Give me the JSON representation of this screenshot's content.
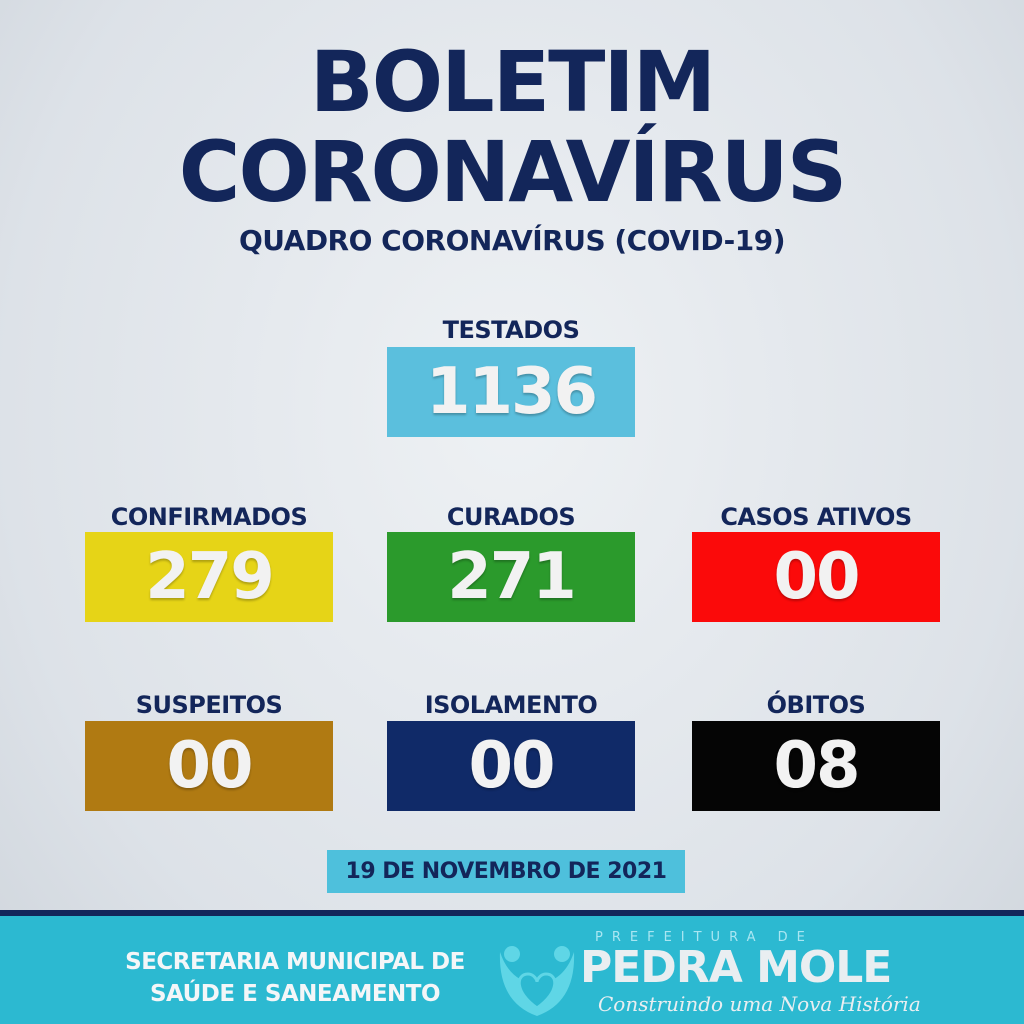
{
  "header": {
    "title_line1": "BOLETIM",
    "title_line2": "CORONAVÍRUS",
    "subtitle": "QUADRO CORONAVÍRUS (COVID-19)"
  },
  "stats": [
    {
      "label": "TESTADOS",
      "value": "1136",
      "color": "#5bbfdd"
    },
    {
      "label": "CONFIRMADOS",
      "value": "279",
      "color": "#e6d417"
    },
    {
      "label": "CURADOS",
      "value": "271",
      "color": "#2b9a2c"
    },
    {
      "label": "CASOS ATIVOS",
      "value": "00",
      "color": "#fb0a0a"
    },
    {
      "label": "SUSPEITOS",
      "value": "00",
      "color": "#b07a12"
    },
    {
      "label": "ISOLAMENTO",
      "value": "00",
      "color": "#102a68"
    },
    {
      "label": "ÓBITOS",
      "value": "08",
      "color": "#050505"
    }
  ],
  "date": "19 DE NOVEMBRO DE 2021",
  "footer": {
    "secretaria_line1": "SECRETARIA MUNICIPAL DE",
    "secretaria_line2": "SAÚDE E SANEAMENTO",
    "logo_top": "PREFEITURA DE",
    "logo_name": "PEDRA MOLE",
    "logo_slogan": "Construindo uma Nova História"
  }
}
